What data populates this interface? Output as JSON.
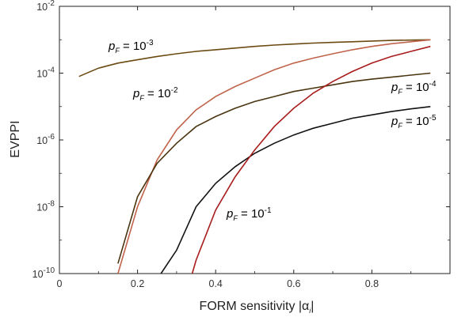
{
  "chart_data": {
    "type": "line",
    "xlabel": "FORM sensitivity |α_i|",
    "xlabel_main": "FORM sensitivity |",
    "xlabel_alpha": "α",
    "xlabel_sub": "i",
    "xlabel_end": "|",
    "ylabel": "EVPPI",
    "xlim": [
      0,
      1
    ],
    "ylim_log10": [
      -10,
      -2
    ],
    "y_scale": "log",
    "grid": false,
    "x_ticks": [
      {
        "value": 0,
        "label": "0"
      },
      {
        "value": 0.2,
        "label": "0.2"
      },
      {
        "value": 0.4,
        "label": "0.4"
      },
      {
        "value": 0.6,
        "label": "0.6"
      },
      {
        "value": 0.8,
        "label": "0.8"
      }
    ],
    "y_ticks": [
      {
        "exp": -2,
        "base": "10",
        "sup": "-2"
      },
      {
        "exp": -4,
        "base": "10",
        "sup": "-4"
      },
      {
        "exp": -6,
        "base": "10",
        "sup": "-6"
      },
      {
        "exp": -8,
        "base": "10",
        "sup": "-8"
      },
      {
        "exp": -10,
        "base": "10",
        "sup": "-10"
      }
    ],
    "series": [
      {
        "pF_exp": "-3",
        "color": "#6b4a12",
        "x": [
          0.05,
          0.1,
          0.15,
          0.2,
          0.25,
          0.3,
          0.35,
          0.4,
          0.45,
          0.5,
          0.55,
          0.6,
          0.65,
          0.7,
          0.75,
          0.8,
          0.85,
          0.9,
          0.95
        ],
        "log10_y": [
          -4.1,
          -3.85,
          -3.7,
          -3.6,
          -3.5,
          -3.42,
          -3.35,
          -3.3,
          -3.25,
          -3.2,
          -3.16,
          -3.13,
          -3.1,
          -3.08,
          -3.06,
          -3.04,
          -3.02,
          -3.01,
          -3.0
        ]
      },
      {
        "pF_exp": "-2",
        "color": "#c0634a",
        "x": [
          0.15,
          0.2,
          0.25,
          0.3,
          0.35,
          0.4,
          0.45,
          0.5,
          0.55,
          0.6,
          0.65,
          0.7,
          0.75,
          0.8,
          0.85,
          0.9,
          0.95
        ],
        "log10_y": [
          -10.0,
          -8.0,
          -6.6,
          -5.7,
          -5.1,
          -4.7,
          -4.4,
          -4.15,
          -3.9,
          -3.7,
          -3.55,
          -3.42,
          -3.3,
          -3.2,
          -3.12,
          -3.06,
          -3.0
        ]
      },
      {
        "pF_exp": "-4",
        "color": "#4a3510",
        "x": [
          0.15,
          0.2,
          0.25,
          0.3,
          0.35,
          0.4,
          0.45,
          0.5,
          0.55,
          0.6,
          0.65,
          0.7,
          0.75,
          0.8,
          0.85,
          0.9,
          0.95
        ],
        "log10_y": [
          -9.7,
          -7.7,
          -6.7,
          -6.1,
          -5.6,
          -5.3,
          -5.05,
          -4.85,
          -4.7,
          -4.55,
          -4.45,
          -4.35,
          -4.25,
          -4.18,
          -4.12,
          -4.06,
          -4.0
        ]
      },
      {
        "pF_exp": "-5",
        "color": "#111111",
        "x": [
          0.26,
          0.3,
          0.35,
          0.4,
          0.45,
          0.5,
          0.55,
          0.6,
          0.65,
          0.7,
          0.75,
          0.8,
          0.85,
          0.9,
          0.95
        ],
        "log10_y": [
          -10.0,
          -9.3,
          -8.0,
          -7.3,
          -6.8,
          -6.4,
          -6.1,
          -5.85,
          -5.65,
          -5.5,
          -5.35,
          -5.25,
          -5.15,
          -5.07,
          -5.0
        ]
      },
      {
        "pF_exp": "-1",
        "color": "#a81c1c",
        "x": [
          0.34,
          0.35,
          0.4,
          0.45,
          0.5,
          0.55,
          0.6,
          0.65,
          0.7,
          0.75,
          0.8,
          0.85,
          0.9,
          0.95
        ],
        "log10_y": [
          -10.0,
          -9.6,
          -8.1,
          -7.1,
          -6.3,
          -5.6,
          -5.05,
          -4.6,
          -4.25,
          -3.95,
          -3.7,
          -3.5,
          -3.35,
          -3.2
        ]
      }
    ],
    "annotations": [
      {
        "series_exp": "-3",
        "prefix": "p",
        "sub": "F",
        "eq": " = 10",
        "sup": "-3"
      },
      {
        "series_exp": "-2",
        "prefix": "p",
        "sub": "F",
        "eq": " = 10",
        "sup": "-2"
      },
      {
        "series_exp": "-4",
        "prefix": "p",
        "sub": "F",
        "eq": " = 10",
        "sup": "-4"
      },
      {
        "series_exp": "-5",
        "prefix": "p",
        "sub": "F",
        "eq": " = 10",
        "sup": "-5"
      },
      {
        "series_exp": "-1",
        "prefix": "p",
        "sub": "F",
        "eq": " = 10",
        "sup": "-1"
      }
    ]
  }
}
